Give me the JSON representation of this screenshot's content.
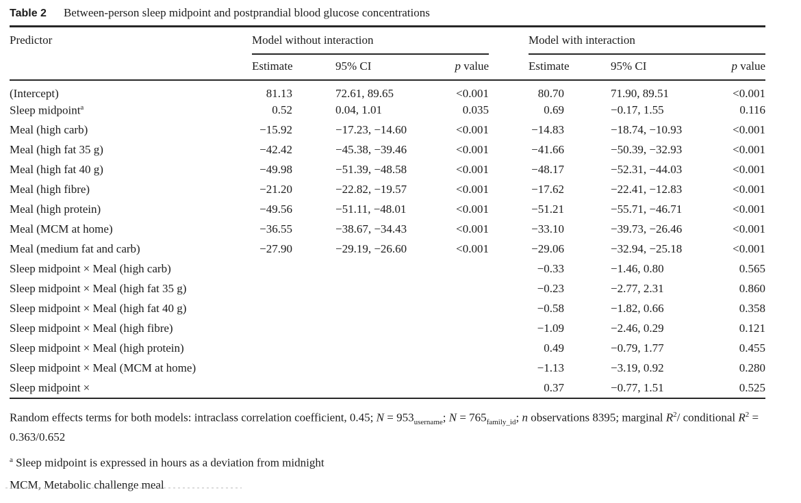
{
  "title": {
    "label": "Table 2",
    "caption": "Between-person sleep midpoint and postprandial blood glucose concentrations"
  },
  "columns": {
    "predictor": "Predictor",
    "group_without": "Model without interaction",
    "group_with": "Model with interaction",
    "estimate": "Estimate",
    "ci": "95% CI",
    "p_symbol": "p",
    "p_word": " value"
  },
  "rows": [
    {
      "predictor": "(Intercept)",
      "sup": "",
      "m1_est": "81.13",
      "m1_ci": "72.61, 89.65",
      "m1_p": "<0.001",
      "m2_est": "80.70",
      "m2_ci": "71.90, 89.51",
      "m2_p": "<0.001"
    },
    {
      "predictor": "Sleep midpoint",
      "sup": "a",
      "m1_est": "0.52",
      "m1_ci": "0.04, 1.01",
      "m1_p": "0.035",
      "m2_est": "0.69",
      "m2_ci": "−0.17, 1.55",
      "m2_p": "0.116"
    },
    {
      "predictor": "Meal (high carb)",
      "sup": "",
      "m1_est": "−15.92",
      "m1_ci": "−17.23, −14.60",
      "m1_p": "<0.001",
      "m2_est": "−14.83",
      "m2_ci": "−18.74, −10.93",
      "m2_p": "<0.001"
    },
    {
      "predictor": "Meal (high fat 35 g)",
      "sup": "",
      "m1_est": "−42.42",
      "m1_ci": "−45.38, −39.46",
      "m1_p": "<0.001",
      "m2_est": "−41.66",
      "m2_ci": "−50.39, −32.93",
      "m2_p": "<0.001"
    },
    {
      "predictor": "Meal (high fat 40 g)",
      "sup": "",
      "m1_est": "−49.98",
      "m1_ci": "−51.39, −48.58",
      "m1_p": "<0.001",
      "m2_est": "−48.17",
      "m2_ci": "−52.31, −44.03",
      "m2_p": "<0.001"
    },
    {
      "predictor": "Meal (high fibre)",
      "sup": "",
      "m1_est": "−21.20",
      "m1_ci": "−22.82, −19.57",
      "m1_p": "<0.001",
      "m2_est": "−17.62",
      "m2_ci": "−22.41, −12.83",
      "m2_p": "<0.001"
    },
    {
      "predictor": "Meal (high protein)",
      "sup": "",
      "m1_est": "−49.56",
      "m1_ci": "−51.11, −48.01",
      "m1_p": "<0.001",
      "m2_est": "−51.21",
      "m2_ci": "−55.71, −46.71",
      "m2_p": "<0.001"
    },
    {
      "predictor": "Meal (MCM at home)",
      "sup": "",
      "m1_est": "−36.55",
      "m1_ci": "−38.67, −34.43",
      "m1_p": "<0.001",
      "m2_est": "−33.10",
      "m2_ci": "−39.73, −26.46",
      "m2_p": "<0.001"
    },
    {
      "predictor": "Meal (medium fat and carb)",
      "sup": "",
      "m1_est": "−27.90",
      "m1_ci": "−29.19, −26.60",
      "m1_p": "<0.001",
      "m2_est": "−29.06",
      "m2_ci": "−32.94, −25.18",
      "m2_p": "<0.001"
    },
    {
      "predictor": "Sleep midpoint × Meal (high carb)",
      "sup": "",
      "m1_est": "",
      "m1_ci": "",
      "m1_p": "",
      "m2_est": "−0.33",
      "m2_ci": "−1.46, 0.80",
      "m2_p": "0.565"
    },
    {
      "predictor": "Sleep midpoint × Meal (high fat 35 g)",
      "sup": "",
      "m1_est": "",
      "m1_ci": "",
      "m1_p": "",
      "m2_est": "−0.23",
      "m2_ci": "−2.77, 2.31",
      "m2_p": "0.860"
    },
    {
      "predictor": "Sleep midpoint × Meal (high fat 40 g)",
      "sup": "",
      "m1_est": "",
      "m1_ci": "",
      "m1_p": "",
      "m2_est": "−0.58",
      "m2_ci": "−1.82, 0.66",
      "m2_p": "0.358"
    },
    {
      "predictor": "Sleep midpoint × Meal (high fibre)",
      "sup": "",
      "m1_est": "",
      "m1_ci": "",
      "m1_p": "",
      "m2_est": "−1.09",
      "m2_ci": "−2.46, 0.29",
      "m2_p": "0.121"
    },
    {
      "predictor": "Sleep midpoint × Meal (high protein)",
      "sup": "",
      "m1_est": "",
      "m1_ci": "",
      "m1_p": "",
      "m2_est": "0.49",
      "m2_ci": "−0.79, 1.77",
      "m2_p": "0.455"
    },
    {
      "predictor": "Sleep midpoint × Meal (MCM at home)",
      "sup": "",
      "m1_est": "",
      "m1_ci": "",
      "m1_p": "",
      "m2_est": "−1.13",
      "m2_ci": "−3.19, 0.92",
      "m2_p": "0.280"
    },
    {
      "predictor": "Sleep midpoint ×",
      "sup": "",
      "m1_est": "",
      "m1_ci": "",
      "m1_p": "",
      "m2_est": "0.37",
      "m2_ci": "−0.77, 1.51",
      "m2_p": "0.525"
    }
  ],
  "footnotes": [
    {
      "segments": [
        {
          "t": "Random effects terms for both models: intraclass correlation coefficient, 0.45; "
        },
        {
          "t": "N",
          "s": "i"
        },
        {
          "t": " = 953"
        },
        {
          "t": "username",
          "s": "sub"
        },
        {
          "t": "; "
        },
        {
          "t": "N",
          "s": "i"
        },
        {
          "t": " = 765"
        },
        {
          "t": "family_id",
          "s": "sub"
        },
        {
          "t": "; "
        },
        {
          "t": "n",
          "s": "i"
        },
        {
          "t": " observations 8395; marginal "
        },
        {
          "t": "R",
          "s": "i"
        },
        {
          "t": "2",
          "s": "sup"
        },
        {
          "t": "/ conditional "
        },
        {
          "t": "R",
          "s": "i"
        },
        {
          "t": "2",
          "s": "sup"
        },
        {
          "t": " = 0.363/0.652"
        }
      ]
    },
    {
      "segments": [
        {
          "t": "a",
          "s": "sup"
        },
        {
          "t": " Sleep midpoint is expressed in hours as a deviation from midnight"
        }
      ]
    },
    {
      "segments": [
        {
          "t": "MCM, Metabolic challenge meal"
        }
      ]
    }
  ]
}
